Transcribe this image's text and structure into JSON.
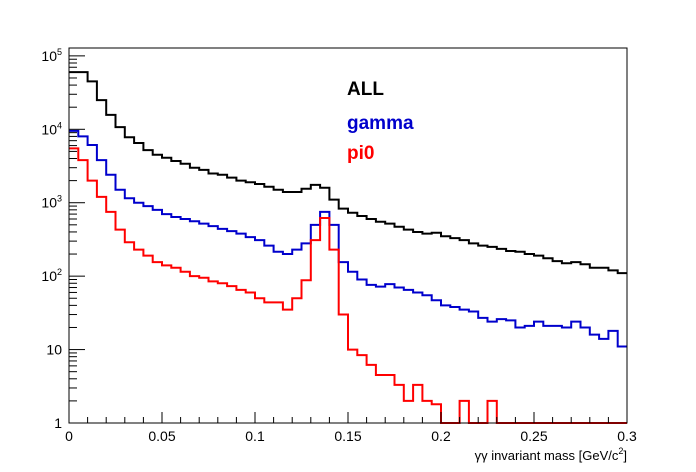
{
  "chart_data": {
    "type": "histogram",
    "title": "",
    "xlabel": "γγ invariant mass [GeV/c²]",
    "xlabel_main": "γγ invariant mass [GeV/c",
    "xlabel_sup": "2",
    "xlabel_end": "]",
    "ylabel": "",
    "xlim": [
      0,
      0.3
    ],
    "ylim": [
      1,
      128000
    ],
    "yscale": "log",
    "bin_width": 0.005,
    "x_ticks": [
      "0",
      "0.05",
      "0.1",
      "0.15",
      "0.2",
      "0.25",
      "0.3"
    ],
    "x_tick_values": [
      0,
      0.05,
      0.1,
      0.15,
      0.2,
      0.25,
      0.3
    ],
    "y_ticks": [
      {
        "value": 1,
        "base": "1",
        "exp": ""
      },
      {
        "value": 10,
        "base": "10",
        "exp": ""
      },
      {
        "value": 100,
        "base": "10",
        "exp": "2"
      },
      {
        "value": 1000,
        "base": "10",
        "exp": "3"
      },
      {
        "value": 10000,
        "base": "10",
        "exp": "4"
      },
      {
        "value": 100000,
        "base": "10",
        "exp": "5"
      }
    ],
    "legend_placement": "top-center",
    "series": [
      {
        "name": "ALL",
        "color": "#000000",
        "values": [
          60000,
          60000,
          45000,
          25000,
          15700,
          10700,
          7800,
          6500,
          5200,
          4500,
          4100,
          3700,
          3400,
          3000,
          2800,
          2500,
          2400,
          2200,
          2000,
          1900,
          1800,
          1650,
          1500,
          1400,
          1400,
          1550,
          1750,
          1600,
          1100,
          830,
          730,
          660,
          600,
          550,
          520,
          470,
          430,
          400,
          380,
          390,
          350,
          330,
          310,
          280,
          260,
          250,
          235,
          220,
          215,
          200,
          190,
          175,
          160,
          150,
          155,
          145,
          130,
          130,
          120,
          110
        ]
      },
      {
        "name": "gamma",
        "color": "#0000cc",
        "values": [
          9500,
          8000,
          6100,
          3800,
          2400,
          1500,
          1150,
          1000,
          900,
          800,
          700,
          640,
          600,
          560,
          520,
          480,
          440,
          410,
          380,
          340,
          310,
          260,
          215,
          200,
          230,
          280,
          500,
          750,
          500,
          155,
          115,
          90,
          76,
          72,
          78,
          70,
          65,
          60,
          55,
          47,
          40,
          38,
          35,
          33,
          27,
          24,
          26,
          25,
          20,
          21,
          24,
          21,
          21,
          20,
          24,
          20,
          16,
          14,
          18,
          11
        ]
      },
      {
        "name": "pi0",
        "color": "#ff0000",
        "values": [
          5500,
          3800,
          2000,
          1200,
          750,
          430,
          290,
          230,
          190,
          155,
          140,
          130,
          115,
          100,
          95,
          85,
          80,
          73,
          65,
          60,
          50,
          44,
          44,
          35,
          50,
          88,
          310,
          620,
          230,
          30,
          10,
          8.4,
          6.2,
          4.5,
          4.5,
          3.3,
          2,
          3.3,
          2,
          1.8,
          0,
          0,
          2,
          0,
          0,
          2,
          0,
          0,
          0,
          0,
          1,
          0,
          0,
          0,
          0,
          0,
          0,
          0,
          0,
          0
        ]
      }
    ]
  }
}
